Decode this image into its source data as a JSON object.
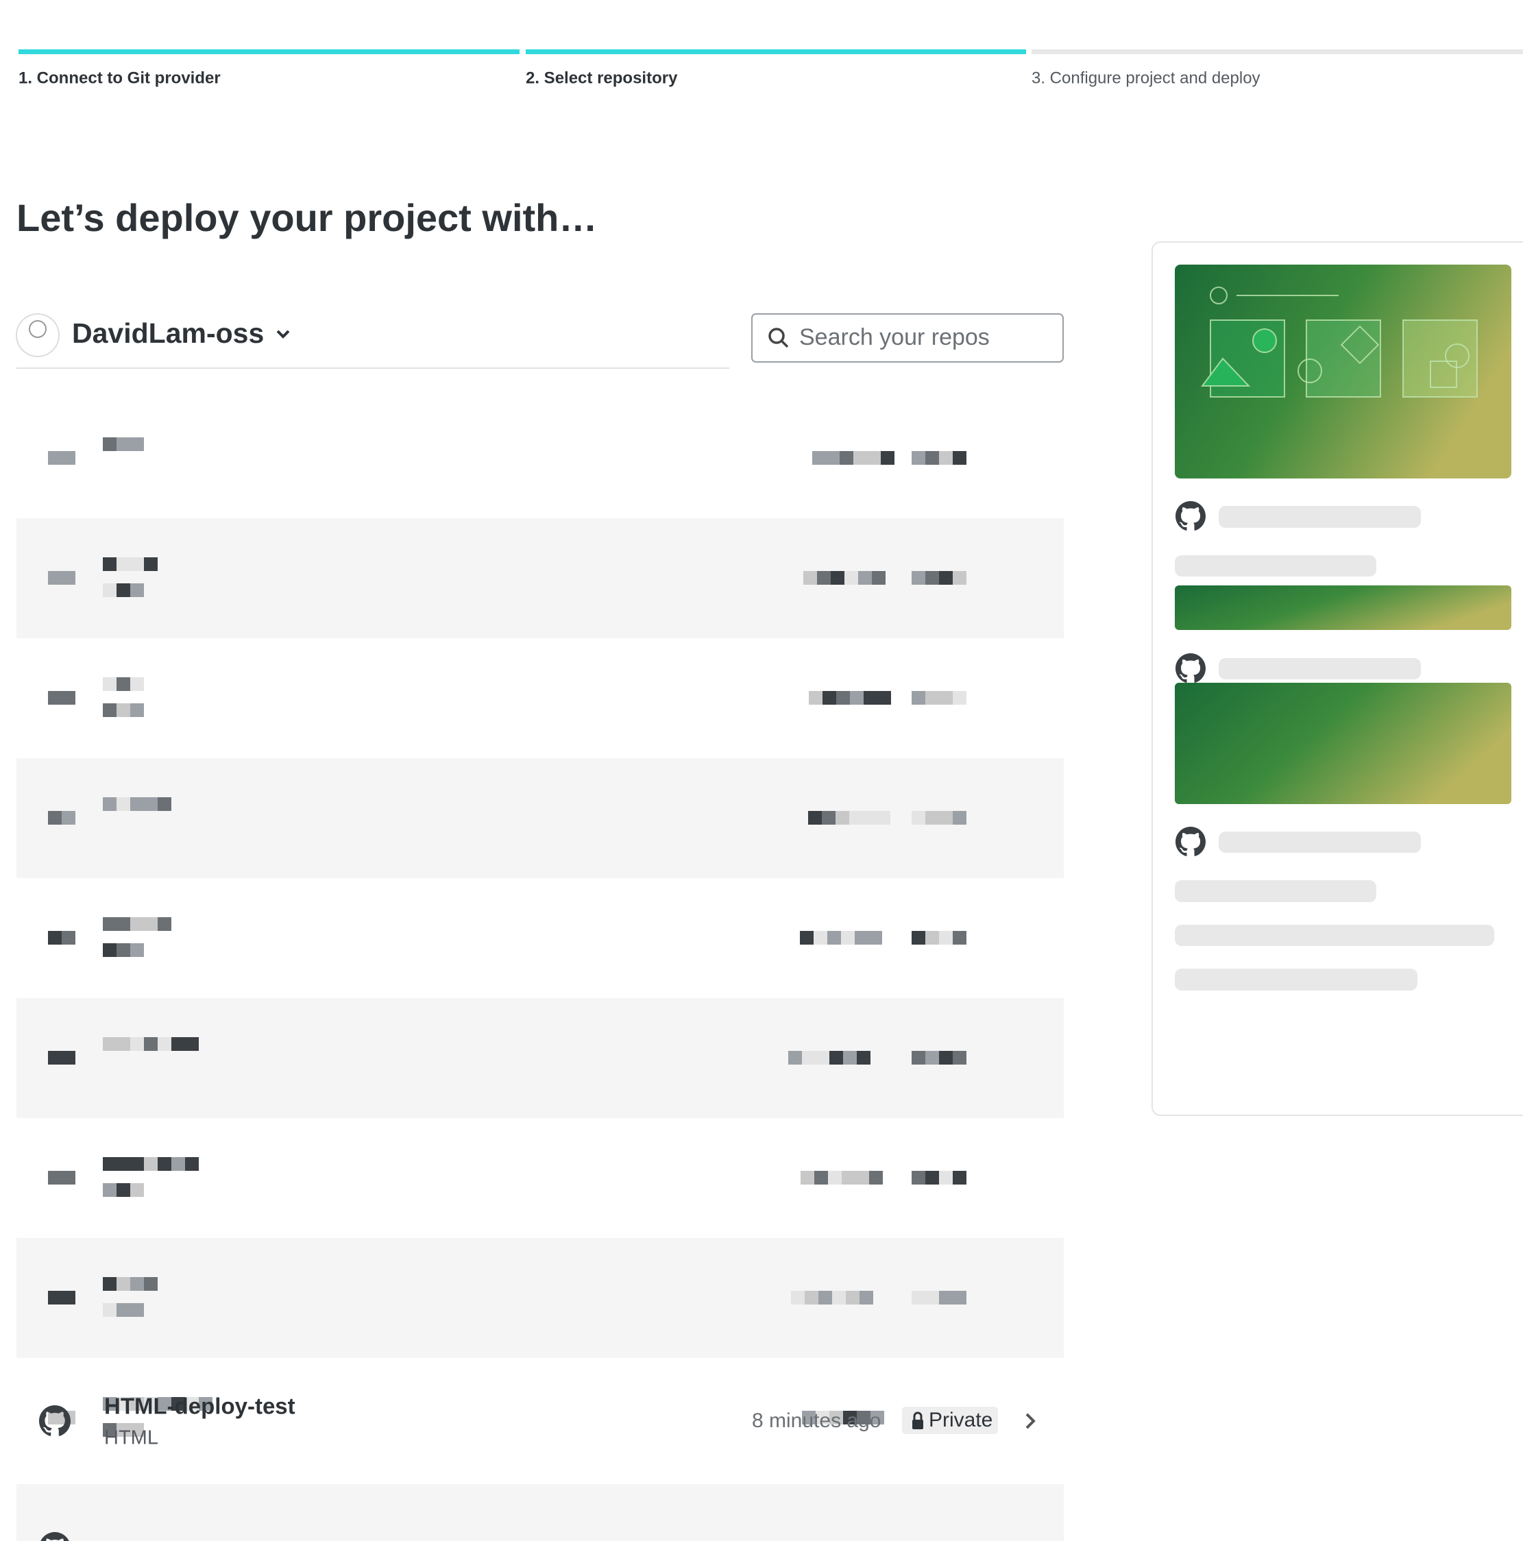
{
  "steps": [
    "1. Connect to Git provider",
    "2. Select repository",
    "3. Configure project and deploy"
  ],
  "heading": "Let’s deploy your project with…",
  "account": "DavidLam-oss",
  "search_placeholder": "Search your repos",
  "repos": [
    {
      "name": "HTML-deploy-test",
      "language": "HTML",
      "updated": "8 minutes ago",
      "visibility": "Private"
    }
  ]
}
